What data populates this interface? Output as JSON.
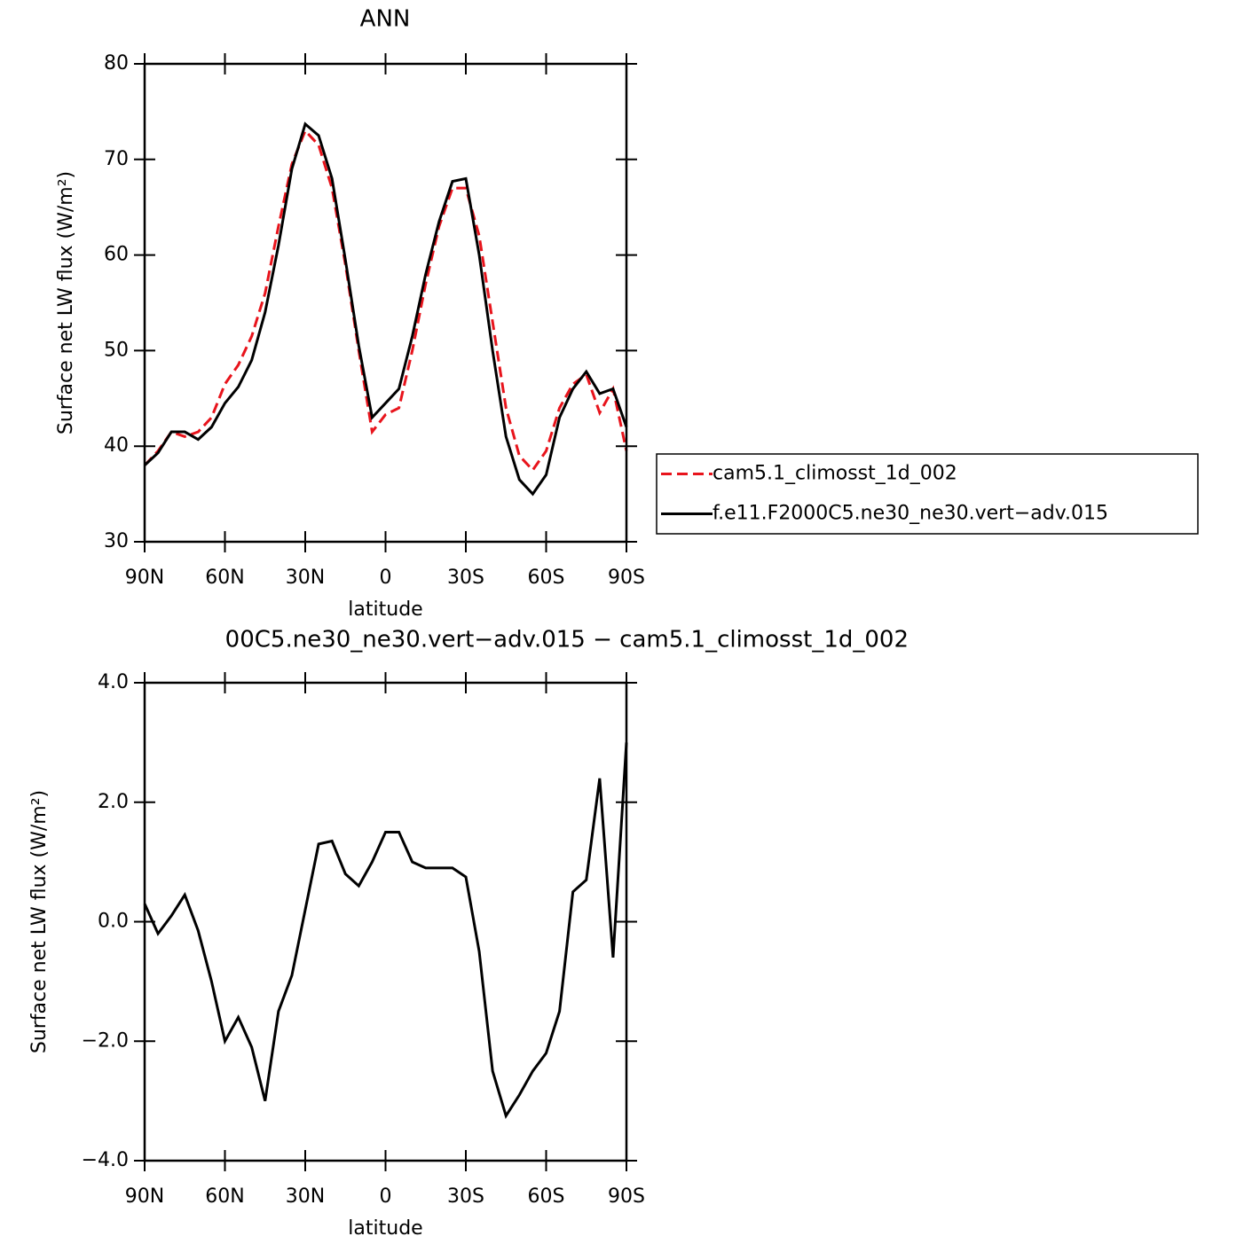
{
  "chart_data": [
    {
      "type": "line",
      "title": "ANN",
      "xlabel": "latitude",
      "ylabel": "Surface net LW flux (W/m²)",
      "x": [
        90,
        85,
        80,
        75,
        70,
        65,
        60,
        55,
        50,
        45,
        40,
        35,
        30,
        25,
        20,
        15,
        10,
        5,
        0,
        -5,
        -10,
        -15,
        -20,
        -25,
        -30,
        -35,
        -40,
        -45,
        -50,
        -55,
        -60,
        -65,
        -70,
        -75,
        -80,
        -85,
        -90
      ],
      "series": [
        {
          "name": "cam5.1_climosst_1d_002",
          "color": "#e8141c",
          "dash": "dashed",
          "values": [
            38,
            39.5,
            41.5,
            41,
            41.5,
            43,
            46.5,
            48.5,
            51.5,
            56,
            63,
            69.5,
            73,
            71.5,
            67,
            59,
            50,
            41.5,
            43.3,
            44,
            50,
            57,
            63,
            67,
            67,
            62,
            53,
            44,
            39,
            37.5,
            39.5,
            44,
            46.5,
            47.5,
            43.5,
            46,
            39.5
          ]
        },
        {
          "name": "f.e11.F2000C5.ne30_ne30.vert−adv.015",
          "color": "#000000",
          "dash": "solid",
          "values": [
            38,
            39.3,
            41.5,
            41.5,
            40.7,
            42,
            44.5,
            46.2,
            49,
            54,
            61,
            69,
            73.7,
            72.5,
            68,
            59.5,
            50.5,
            43,
            44.5,
            46,
            51.5,
            58,
            63.5,
            67.7,
            68,
            60,
            50,
            41,
            36.5,
            35,
            37,
            43,
            46,
            47.8,
            45.5,
            46,
            42
          ]
        }
      ],
      "xlim": [
        90,
        -90
      ],
      "xticks": [
        {
          "value": 90,
          "label": "90N"
        },
        {
          "value": 60,
          "label": "60N"
        },
        {
          "value": 30,
          "label": "30N"
        },
        0,
        {
          "value": -30,
          "label": "30S"
        },
        {
          "value": -60,
          "label": "60S"
        },
        {
          "value": -90,
          "label": "90S"
        }
      ],
      "ylim": [
        30,
        80
      ],
      "yticks": [
        30,
        40,
        50,
        60,
        70,
        80
      ],
      "legend": "outside-right"
    },
    {
      "type": "line",
      "title": "00C5.ne30_ne30.vert−adv.015 − cam5.1_climosst_1d_002",
      "xlabel": "latitude",
      "ylabel": "Surface net LW flux (W/m²)",
      "x": [
        90,
        85,
        80,
        75,
        70,
        65,
        60,
        55,
        50,
        45,
        40,
        35,
        30,
        25,
        20,
        15,
        10,
        5,
        0,
        -5,
        -10,
        -15,
        -20,
        -25,
        -30,
        -35,
        -40,
        -45,
        -50,
        -55,
        -60,
        -65,
        -70,
        -75,
        -80,
        -85,
        -90
      ],
      "series": [
        {
          "color": "#000000",
          "dash": "solid",
          "values": [
            0.3,
            -0.2,
            0.1,
            0.45,
            -0.15,
            -1.0,
            -2.0,
            -1.6,
            -2.1,
            -3.0,
            -1.5,
            -0.9,
            0.2,
            1.3,
            1.35,
            0.8,
            0.6,
            1.0,
            1.5,
            1.5,
            1.0,
            0.9,
            0.9,
            0.9,
            0.75,
            -0.5,
            -2.5,
            -3.25,
            -2.9,
            -2.5,
            -2.2,
            -1.5,
            0.5,
            0.7,
            2.4,
            -0.6,
            3.0
          ]
        }
      ],
      "xlim": [
        90,
        -90
      ],
      "xticks": [
        {
          "value": 90,
          "label": "90N"
        },
        {
          "value": 60,
          "label": "60N"
        },
        {
          "value": 30,
          "label": "30N"
        },
        0,
        {
          "value": -30,
          "label": "30S"
        },
        {
          "value": -60,
          "label": "60S"
        },
        {
          "value": -90,
          "label": "90S"
        }
      ],
      "ylim": [
        -4,
        4
      ],
      "yticks": [
        {
          "value": -4,
          "label": "−4.0"
        },
        {
          "value": -2,
          "label": "−2.0"
        },
        {
          "value": 0,
          "label": "0.0"
        },
        {
          "value": 2,
          "label": "2.0"
        },
        {
          "value": 4,
          "label": "4.0"
        }
      ]
    }
  ]
}
